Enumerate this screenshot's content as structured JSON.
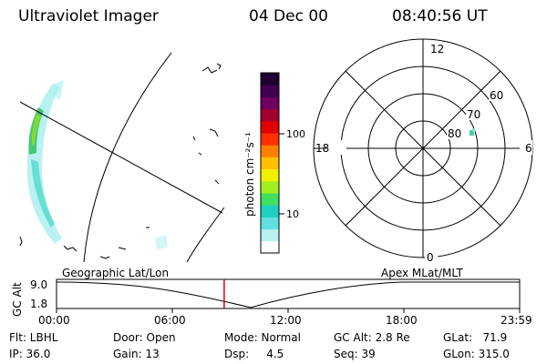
{
  "header": {
    "instrument": "Ultraviolet Imager",
    "date": "04 Dec 00",
    "time": "08:40:56 UT"
  },
  "colorbar": {
    "unit_label": "photon cm⁻²s⁻¹",
    "ticks": [
      "100",
      "10"
    ],
    "colors": [
      "#ffffff",
      "#b8f0f0",
      "#60e0e0",
      "#20d0c0",
      "#40e060",
      "#a0f020",
      "#f0f000",
      "#ffc000",
      "#ff8000",
      "#ff3000",
      "#e00000",
      "#a00030",
      "#700060",
      "#400050",
      "#200030"
    ]
  },
  "polar_plot": {
    "mlt_labels": {
      "top": "12",
      "bottom": "0",
      "left": "18",
      "right": "6"
    },
    "lat_labels": [
      "60",
      "70",
      "80"
    ]
  },
  "timeline": {
    "left_label": "Geographic Lat/Lon",
    "right_label": "Apex  MLat/MLT",
    "axis_label": "GC Alt",
    "y_max": "9.0",
    "y_min": "1.8",
    "x_ticks": [
      "00:00",
      "06:00",
      "12:00",
      "18:00",
      "23:59"
    ],
    "current_time_fraction": 0.362
  },
  "info": {
    "flt": "Flt: LBHL",
    "ip": "IP: 36.0",
    "door": "Door: Open",
    "gain": "Gain: 13",
    "mode": "Mode: Normal",
    "dsp": "Dsp:     4.5",
    "gc_alt": "GC Alt: 2.8 Re",
    "seq": "Seq: 39",
    "glat": "GLat:   71.9",
    "glon": "GLon: 315.0"
  }
}
